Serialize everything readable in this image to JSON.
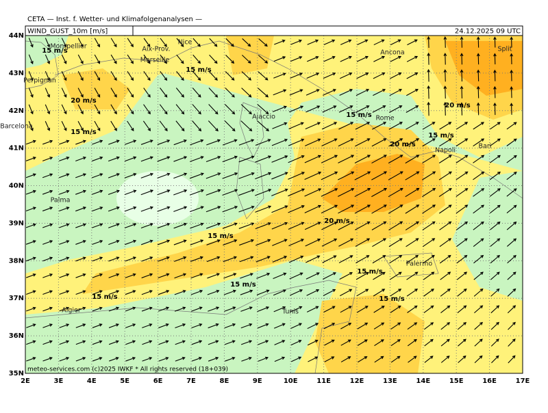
{
  "header": {
    "title": "CETA — Inst. f. Wetter- und Klimafolgenanalysen —",
    "variable": "WIND_GUST_10m [m/s]",
    "time": "24.12.2025 09 UTC"
  },
  "map": {
    "lon_ticks": [
      {
        "value": 2,
        "label": "2E"
      },
      {
        "value": 3,
        "label": "3E"
      },
      {
        "value": 4,
        "label": "4E"
      },
      {
        "value": 5,
        "label": "5E"
      },
      {
        "value": 6,
        "label": "6E"
      },
      {
        "value": 7,
        "label": "7E"
      },
      {
        "value": 8,
        "label": "8E"
      },
      {
        "value": 9,
        "label": "9E"
      },
      {
        "value": 10,
        "label": "10E"
      },
      {
        "value": 11,
        "label": "11E"
      },
      {
        "value": 12,
        "label": "12E"
      },
      {
        "value": 13,
        "label": "13E"
      },
      {
        "value": 14,
        "label": "14E"
      },
      {
        "value": 15,
        "label": "15E"
      },
      {
        "value": 16,
        "label": "16E"
      },
      {
        "value": 17,
        "label": "17E"
      }
    ],
    "lat_ticks": [
      {
        "value": 44,
        "label": "44N"
      },
      {
        "value": 43,
        "label": "43N"
      },
      {
        "value": 42,
        "label": "42N"
      },
      {
        "value": 41,
        "label": "41N"
      },
      {
        "value": 40,
        "label": "40N"
      },
      {
        "value": 39,
        "label": "39N"
      },
      {
        "value": 38,
        "label": "38N"
      },
      {
        "value": 37,
        "label": "37N"
      },
      {
        "value": 36,
        "label": "36N"
      },
      {
        "value": 35,
        "label": "35N"
      }
    ],
    "cities": [
      "Montpellier",
      "Aix-Prov.",
      "Nice",
      "Marseille",
      "Perpignan",
      "Barcelona",
      "Palma",
      "Ajaccio",
      "Rome",
      "Ancona",
      "Split",
      "Napoli",
      "Bari",
      "Palermo",
      "Tunis",
      "Algier"
    ],
    "contour_labels": [
      "15 m/s",
      "20 m/s",
      "15 m/s",
      "15 m/s",
      "20 m/s",
      "15 m/s",
      "20 m/s",
      "15 m/s",
      "20 m/s",
      "15 m/s",
      "15 m/s",
      "15 m/s",
      "15 m/s",
      "15 m/s"
    ]
  },
  "footer": "meteo-services.com (c)2025 IWKF * All rights reserved (18+039)"
}
